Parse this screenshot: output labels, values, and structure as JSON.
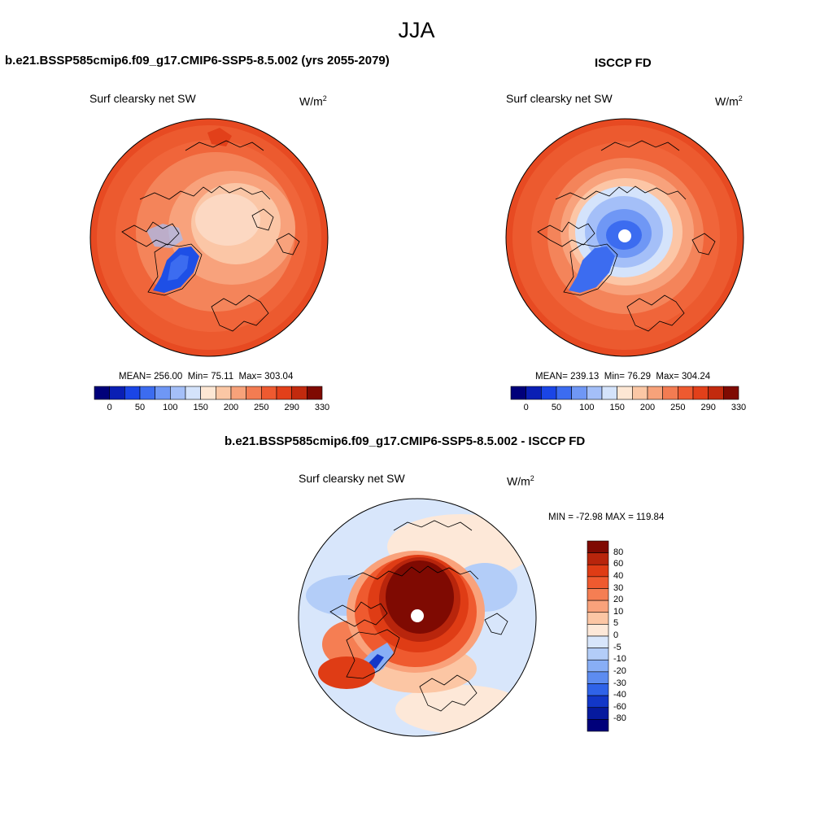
{
  "main_title": "JJA",
  "panels": {
    "model": {
      "case_title": "b.e21.BSSP585cmip6.f09_g17.CMIP6-SSP5-8.5.002 (yrs 2055-2079)",
      "variable": "Surf clearsky net SW",
      "units_base": "W/m",
      "units_exp": "2",
      "mean_label": "MEAN=",
      "mean": "256.00",
      "min_label": "Min=",
      "min": "75.11",
      "max_label": "Max=",
      "max": "303.04"
    },
    "obs": {
      "case_title": "ISCCP FD",
      "variable": "Surf clearsky net SW",
      "units_base": "W/m",
      "units_exp": "2",
      "mean_label": "MEAN=",
      "mean": "239.13",
      "min_label": "Min=",
      "min": "76.29",
      "max_label": "Max=",
      "max": "304.24"
    },
    "diff": {
      "case_title": "b.e21.BSSP585cmip6.f09_g17.CMIP6-SSP5-8.5.002 - ISCCP FD",
      "variable": "Surf clearsky net SW",
      "units_base": "W/m",
      "units_exp": "2",
      "minmax": "MIN = -72.98 MAX = 119.84"
    }
  },
  "abs_colorbar": {
    "labels": [
      "0",
      "50",
      "100",
      "150",
      "200",
      "250",
      "290",
      "330"
    ],
    "colors": [
      "#00007a",
      "#0a1fb4",
      "#1a45e6",
      "#3c6cf0",
      "#6f97f5",
      "#a4bff8",
      "#d4e3fb",
      "#fde7d4",
      "#fbc7a5",
      "#f7a27a",
      "#f37c52",
      "#ee5a30",
      "#e2401a",
      "#c22a0e",
      "#7f0a02"
    ]
  },
  "diff_colorbar": {
    "labels": [
      "80",
      "60",
      "40",
      "30",
      "20",
      "10",
      "5",
      "0",
      "-5",
      "-10",
      "-20",
      "-30",
      "-40",
      "-60",
      "-80"
    ],
    "colors": [
      "#7f0a02",
      "#b8250c",
      "#df3c15",
      "#ef5a2f",
      "#f57e53",
      "#f9a27b",
      "#fcc6a4",
      "#fde8d8",
      "#d8e6fb",
      "#b3cdf8",
      "#88aef5",
      "#5d8cf0",
      "#2f63e8",
      "#1237c8",
      "#061a9e",
      "#00007a"
    ]
  }
}
